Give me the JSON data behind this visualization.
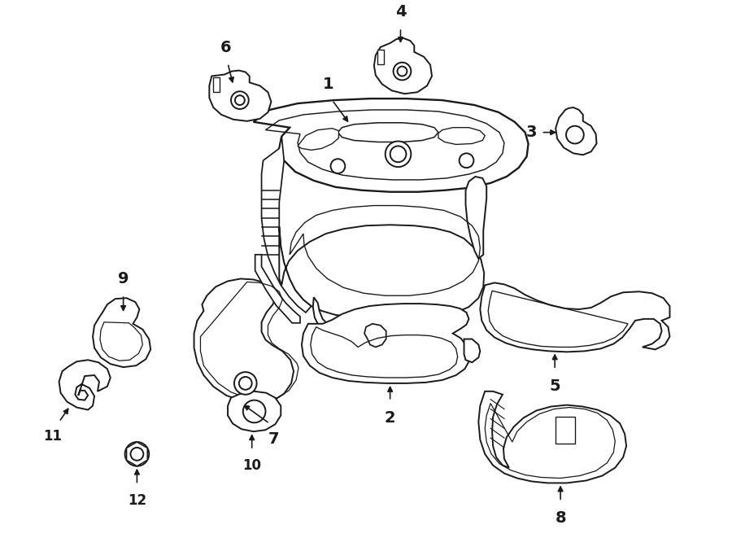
{
  "bg_color": "#ffffff",
  "line_color": "#1a1a1a",
  "line_width": 1.4,
  "fig_width": 9.0,
  "fig_height": 6.61,
  "dpi": 100
}
